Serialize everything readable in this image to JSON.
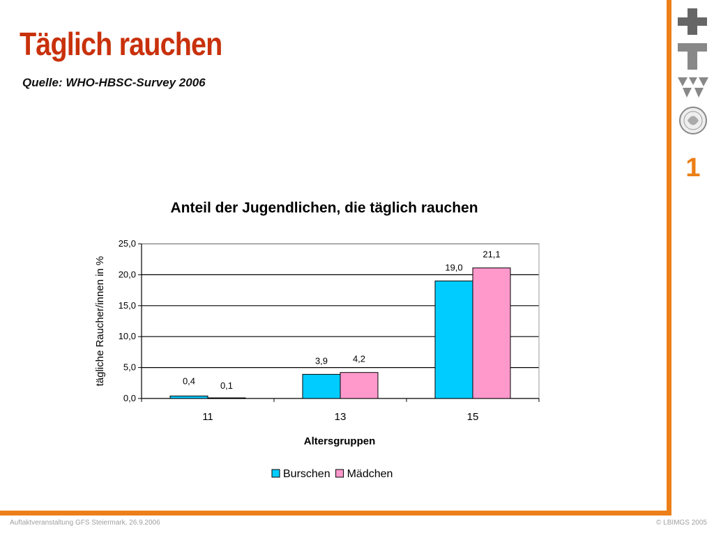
{
  "slide": {
    "title": "Täglich rauchen",
    "source": "Quelle: WHO-HBSC-Survey 2006",
    "number": "1",
    "footer_left": "Auftaktveranstaltung GFS Steiermark, 26.9.2006",
    "footer_right": "© LBIMGS 2005",
    "accent_color": "#ec7f17",
    "title_color": "#c8310b"
  },
  "chart_data": {
    "type": "bar",
    "title": "Anteil der Jugendlichen, die täglich rauchen",
    "xlabel": "Altersgruppen",
    "ylabel": "tägliche Raucher/innen in %",
    "categories": [
      "11",
      "13",
      "15"
    ],
    "ylim": [
      0,
      25
    ],
    "yticks": [
      "0,0",
      "5,0",
      "10,0",
      "15,0",
      "20,0",
      "25,0"
    ],
    "series": [
      {
        "name": "Burschen",
        "color": "#00ccff",
        "values": [
          0.4,
          3.9,
          19.0
        ],
        "labels": [
          "0,4",
          "3,9",
          "19,0"
        ]
      },
      {
        "name": "Mädchen",
        "color": "#ff99cc",
        "values": [
          0.1,
          4.2,
          21.1
        ],
        "labels": [
          "0,1",
          "4,2",
          "21,1"
        ]
      }
    ],
    "grid": true,
    "legend": "bottom"
  }
}
